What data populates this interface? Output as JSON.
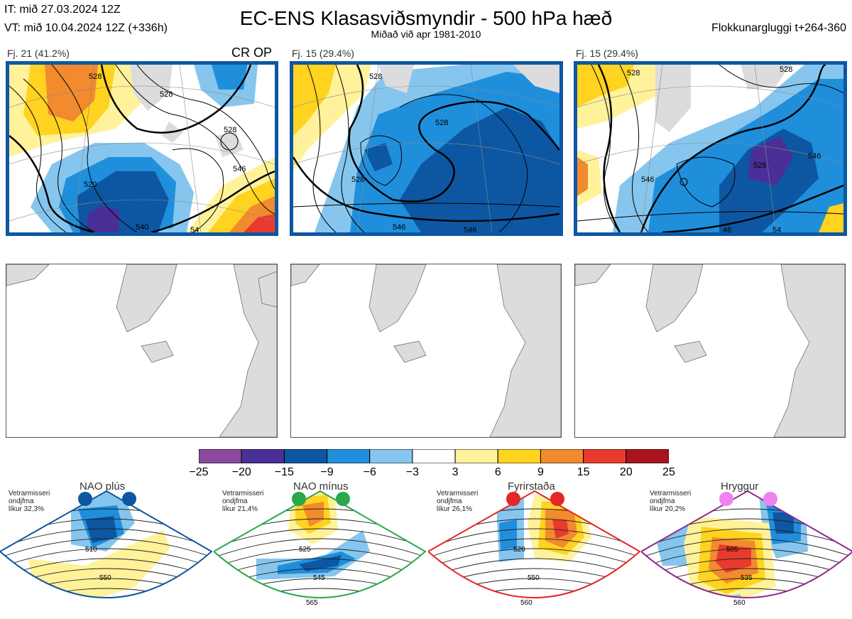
{
  "header": {
    "it_line": "IT: mið 27.03.2024 12Z",
    "vt_line": "VT: mið 10.04.2024 12Z  (+336h)",
    "title": "EC-ENS Klasasviðsmyndir - 500 hPa hæð",
    "subtitle": "Miðað við apr 1981-2010",
    "window": "Flokkunargluggi t+264-360"
  },
  "panels": [
    {
      "label": "Fj. 21 (41.2%)",
      "tag": "CR OP",
      "contours": [
        "528",
        "528",
        "528",
        "520",
        "546",
        "540",
        "54"
      ]
    },
    {
      "label": "Fj. 15 (29.4%)",
      "contours": [
        "528",
        "528",
        "546",
        "546",
        "528"
      ]
    },
    {
      "label": "Fj. 15 (29.4%)",
      "contours": [
        "528",
        "528",
        "546",
        "528",
        "546",
        "46",
        "54"
      ]
    }
  ],
  "colorbar": {
    "ticks": [
      "−25",
      "−20",
      "−15",
      "−9",
      "−6",
      "−3",
      "3",
      "6",
      "9",
      "15",
      "20",
      "25"
    ],
    "colors": [
      "#8b4a9e",
      "#4a2f96",
      "#0d57a2",
      "#1f8fdc",
      "#86c6ee",
      "#ffffff",
      "#fff29a",
      "#ffd31f",
      "#f28a2e",
      "#e83a2d",
      "#a8141b"
    ]
  },
  "regimes": [
    {
      "name": "NAO plús",
      "note1": "Vetrarmisseri",
      "note2": "ondjfma",
      "note3": "líkur 32,3%",
      "color": "#0d57a2",
      "labels": [
        "510",
        "550"
      ]
    },
    {
      "name": "NAO mínus",
      "note1": "Vetrarmisseri",
      "note2": "ondjfma",
      "note3": "líkur 21,4%",
      "color": "#2aa84a",
      "labels": [
        "525",
        "545",
        "565"
      ]
    },
    {
      "name": "Fyrirstaða",
      "note1": "Vetrarmisseri",
      "note2": "ondjfma",
      "note3": "líkur 26,1%",
      "color": "#e32626",
      "labels": [
        "520",
        "550",
        "560"
      ]
    },
    {
      "name": "Hryggur",
      "note1": "Vetrarmisseri",
      "note2": "ondjfma",
      "note3": "líkur 20,2%",
      "color": "#8e2a8e",
      "labels": [
        "505",
        "535",
        "560"
      ]
    }
  ]
}
